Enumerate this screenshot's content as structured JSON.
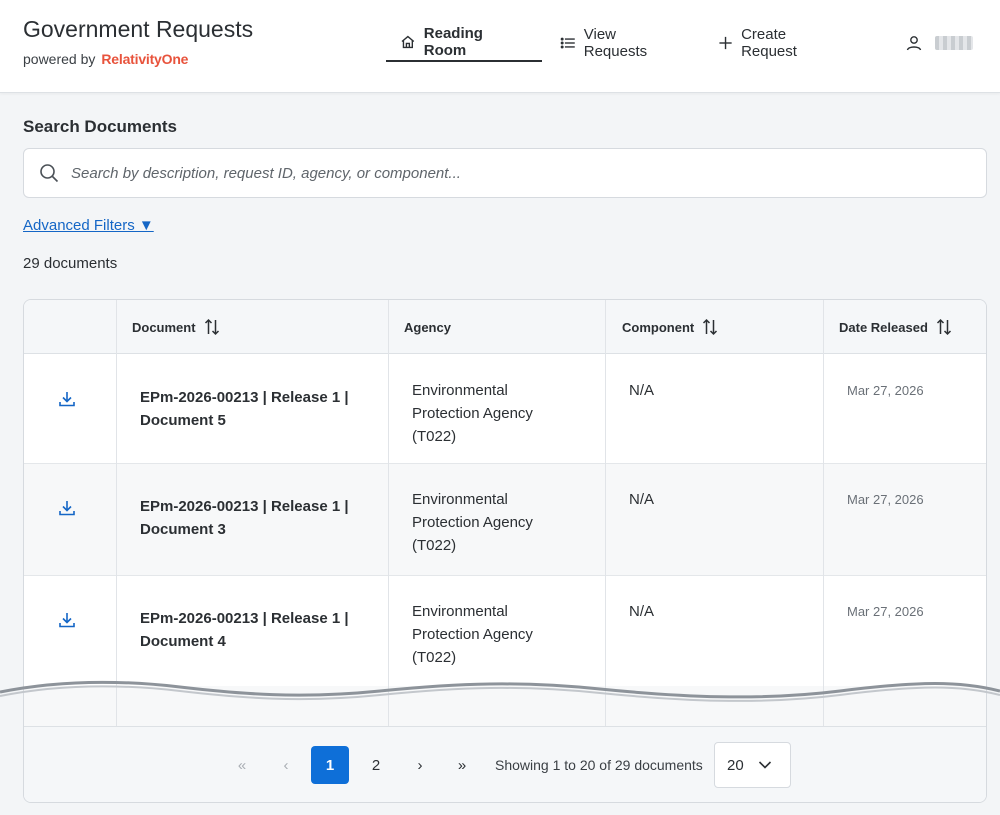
{
  "header": {
    "title": "Government Requests",
    "powered_by": "powered by",
    "brand_part1": "Relativity",
    "brand_part2": "One",
    "nav": [
      {
        "label": "Reading Room",
        "icon": "home-icon",
        "active": true
      },
      {
        "label": "View Requests",
        "icon": "list-icon",
        "active": false
      },
      {
        "label": "Create Request",
        "icon": "plus-icon",
        "active": false
      }
    ],
    "user_icon": "user-icon"
  },
  "search": {
    "title": "Search Documents",
    "placeholder": "Search by description, request ID, agency, or component..."
  },
  "filters": {
    "advanced_label": "Advanced Filters ▼"
  },
  "results": {
    "count_label": "29 documents"
  },
  "table": {
    "columns": [
      {
        "label": "",
        "sortable": false
      },
      {
        "label": "Document",
        "sortable": true
      },
      {
        "label": "Agency",
        "sortable": false
      },
      {
        "label": "Component",
        "sortable": true
      },
      {
        "label": "Date Released",
        "sortable": true
      }
    ],
    "rows": [
      {
        "doc_line1": "EPm-2026-00213 | Release 1 |",
        "doc_line2": "Document 5",
        "agency_line1": "Environmental",
        "agency_line2": "Protection Agency",
        "agency_line3": "(T022)",
        "component": "N/A",
        "date": "Mar 27, 2026"
      },
      {
        "doc_line1": "EPm-2026-00213 | Release 1 |",
        "doc_line2": "Document 3",
        "agency_line1": "Environmental",
        "agency_line2": "Protection Agency",
        "agency_line3": "(T022)",
        "component": "N/A",
        "date": "Mar 27, 2026"
      },
      {
        "doc_line1": "EPm-2026-00213 | Release 1 |",
        "doc_line2": "Document 4",
        "agency_line1": "Environmental",
        "agency_line2": "Protection Agency",
        "agency_line3": "(T022)",
        "component": "N/A",
        "date": "Mar 27, 2026"
      }
    ]
  },
  "pagination": {
    "first": "«",
    "prev": "‹",
    "pages": [
      "1",
      "2"
    ],
    "current": "1",
    "next": "›",
    "last": "»",
    "showing": "Showing 1 to 20 of 29 documents",
    "page_size": "20"
  },
  "colors": {
    "accent": "#0e6fd8",
    "link": "#1466c6",
    "brand": "#e8533c"
  }
}
